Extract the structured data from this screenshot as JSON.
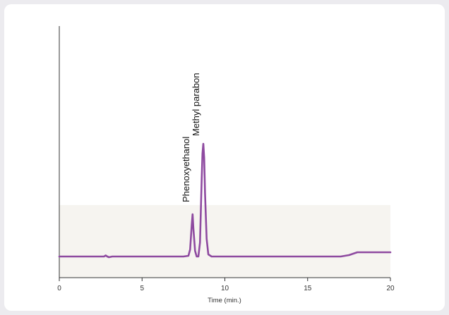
{
  "chart_data": {
    "type": "line",
    "title": "",
    "xlabel": "Time (min.)",
    "ylabel": "",
    "xlim": [
      0,
      20
    ],
    "xticks": [
      0,
      5,
      10,
      15,
      20
    ],
    "xtick_labels": [
      "0",
      "5",
      "10",
      "15",
      "20"
    ],
    "grid": false,
    "colors": {
      "trace": "#8e4aa0",
      "axis": "#333333",
      "band": "#f6f4f0"
    },
    "series": [
      {
        "x": [
          0,
          2.5,
          2.7,
          2.8,
          2.9,
          3.0,
          3.2,
          7.5,
          7.8,
          7.9,
          8.0,
          8.05,
          8.1,
          8.2,
          8.3,
          8.4,
          8.5,
          8.6,
          8.65,
          8.7,
          8.75,
          8.8,
          8.9,
          9.0,
          9.2,
          17.0,
          17.5,
          18.0,
          18.5,
          20
        ],
        "y": [
          0,
          0,
          0,
          1.5,
          0,
          -1.0,
          0,
          0,
          1,
          10,
          45,
          60,
          40,
          8,
          0,
          0,
          20,
          110,
          146,
          160,
          140,
          90,
          25,
          3,
          0,
          0,
          2,
          6,
          6,
          6
        ]
      }
    ],
    "annotations": [
      {
        "text": "Phenoxyethanol",
        "x": 8.1
      },
      {
        "text": "Methyl parabon",
        "x": 8.7
      }
    ]
  }
}
